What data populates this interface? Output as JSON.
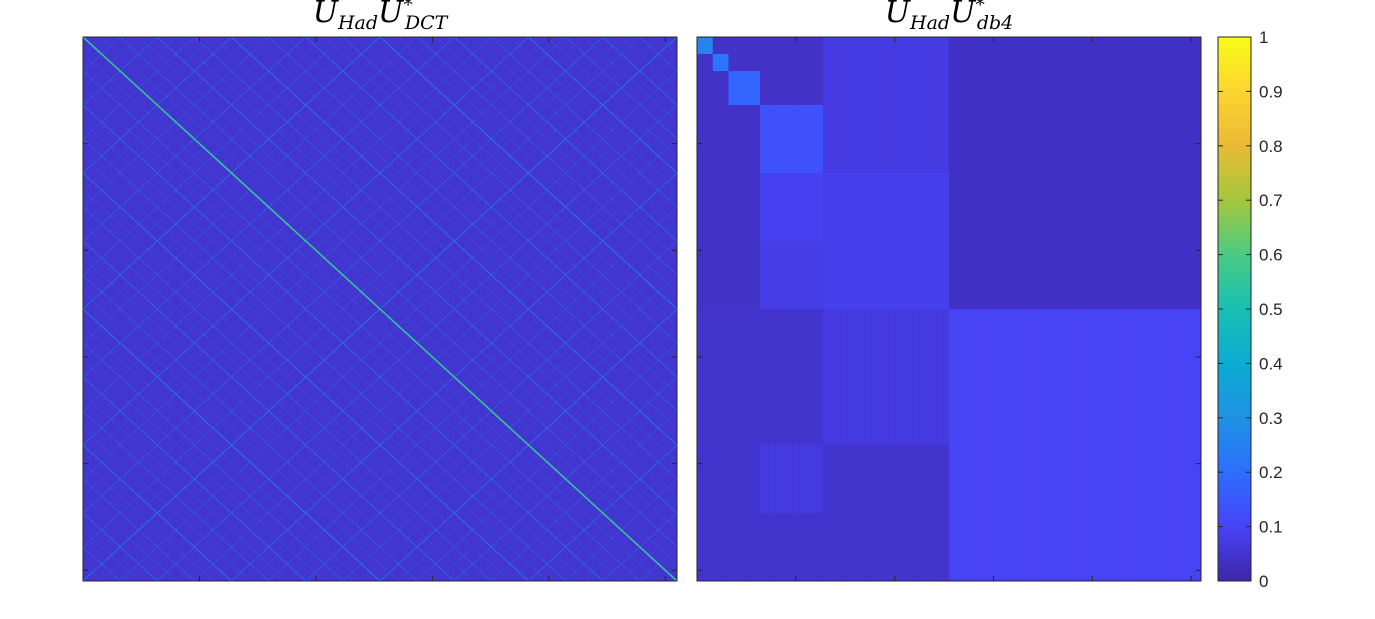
{
  "chart_data": [
    {
      "type": "heatmap",
      "title_parts": {
        "u1": "U",
        "sub1": "Had",
        "u2": "U",
        "sup2": "*",
        "sub2": "DCT"
      },
      "pattern": "fractal-diagonal",
      "value_range": [
        0,
        1
      ],
      "background_value": 0.05,
      "peak_value": 0.55,
      "xlabel": "",
      "ylabel": ""
    },
    {
      "type": "heatmap",
      "title_parts": {
        "u1": "U",
        "sub1": "Had",
        "u2": "U",
        "sup2": "*",
        "sub2": "db4"
      },
      "pattern": "dyadic-blocks",
      "value_range": [
        0,
        1
      ],
      "blocks": [
        {
          "r": [
            0,
            0.5
          ],
          "c": [
            0.5,
            1
          ],
          "v": 0.035
        },
        {
          "r": [
            0.5,
            1
          ],
          "c": [
            0.5,
            1
          ],
          "v": 0.095
        },
        {
          "r": [
            0,
            0.25
          ],
          "c": [
            0.25,
            0.5
          ],
          "v": 0.07
        },
        {
          "r": [
            0.25,
            0.5
          ],
          "c": [
            0.25,
            0.5
          ],
          "v": 0.085
        },
        {
          "r": [
            0.5,
            0.75
          ],
          "c": [
            0.25,
            0.5
          ],
          "v": 0.065
        },
        {
          "r": [
            0.75,
            1
          ],
          "c": [
            0.25,
            0.5
          ],
          "v": 0.045
        },
        {
          "r": [
            0.5,
            1
          ],
          "c": [
            0,
            0.25
          ],
          "v": 0.045
        },
        {
          "r": [
            0.125,
            0.25
          ],
          "c": [
            0.125,
            0.25
          ],
          "v": 0.13
        },
        {
          "r": [
            0.25,
            0.375
          ],
          "c": [
            0.125,
            0.25
          ],
          "v": 0.09
        },
        {
          "r": [
            0.375,
            0.5
          ],
          "c": [
            0.125,
            0.25
          ],
          "v": 0.075
        },
        {
          "r": [
            0.75,
            0.875
          ],
          "c": [
            0.125,
            0.25
          ],
          "v": 0.065
        },
        {
          "r": [
            0.0625,
            0.125
          ],
          "c": [
            0.0625,
            0.125
          ],
          "v": 0.18
        },
        {
          "r": [
            0.03125,
            0.0625
          ],
          "c": [
            0.03125,
            0.0625
          ],
          "v": 0.22
        },
        {
          "r": [
            0.0,
            0.03125
          ],
          "c": [
            0.0,
            0.03125
          ],
          "v": 0.26
        }
      ],
      "xlabel": "",
      "ylabel": ""
    }
  ],
  "colorbar": {
    "ticks": [
      "0",
      "0.1",
      "0.2",
      "0.3",
      "0.4",
      "0.5",
      "0.6",
      "0.7",
      "0.8",
      "0.9",
      "1"
    ],
    "range": [
      0,
      1
    ],
    "colormap": "parula"
  }
}
